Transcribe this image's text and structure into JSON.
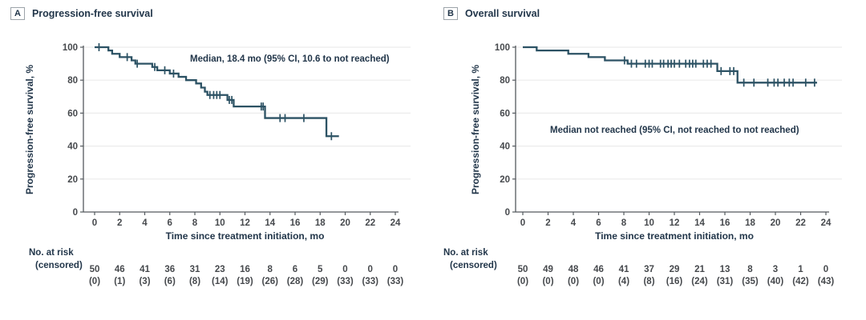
{
  "figure": {
    "background": "#ffffff",
    "colors": {
      "curve": "#2C5264",
      "axis": "#54595E",
      "grid": "#ECECEC",
      "heading_text": "#22364A",
      "tick_text": "#46494D"
    },
    "panels": [
      {
        "letter": "A",
        "title": "Progression-free survival",
        "annotation": "Median, 18.4 mo (95% CI, 10.6 to not reached)",
        "ylabel": "Progression-free survival, %",
        "xlabel": "Time since treatment initiation, mo",
        "risk_header": "No. at risk",
        "risk_subheader": "(censored)"
      },
      {
        "letter": "B",
        "title": "Overall survival",
        "annotation": "Median not reached (95% CI, not reached to not reached)",
        "ylabel": "Progression-free survival, %",
        "xlabel": "Time since treatment initiation, mo",
        "risk_header": "No. at risk",
        "risk_subheader": "(censored)"
      }
    ]
  },
  "chart_data": [
    {
      "type": "line",
      "variant": "kaplan_meier_step",
      "title": "Progression-free survival",
      "annotation": "Median, 18.4 mo (95% CI, 10.6 to not reached)",
      "median_months": "18.4",
      "xlabel": "Time since treatment initiation, mo",
      "ylabel": "Progression-free survival, %",
      "xlim": [
        0,
        24
      ],
      "ylim": [
        0,
        100
      ],
      "xticks": [
        0,
        2,
        4,
        6,
        8,
        10,
        12,
        14,
        16,
        18,
        20,
        22,
        24
      ],
      "yticks": [
        0,
        20,
        40,
        60,
        80,
        100
      ],
      "grid": "horizontal-light",
      "legend": "none",
      "steps": [
        [
          0,
          100
        ],
        [
          1.1,
          98
        ],
        [
          1.4,
          96
        ],
        [
          2.0,
          94
        ],
        [
          2.95,
          92
        ],
        [
          3.25,
          90
        ],
        [
          4.6,
          88
        ],
        [
          5.0,
          86
        ],
        [
          6.0,
          84
        ],
        [
          6.7,
          82
        ],
        [
          7.3,
          80
        ],
        [
          8.1,
          78
        ],
        [
          8.5,
          75.5
        ],
        [
          8.8,
          73
        ],
        [
          9.0,
          71
        ],
        [
          10.6,
          68
        ],
        [
          11.1,
          64
        ],
        [
          13.6,
          57
        ],
        [
          18.5,
          46
        ]
      ],
      "curve_end": 19.5,
      "censors": [
        [
          0.35,
          100
        ],
        [
          2.6,
          94
        ],
        [
          3.4,
          90
        ],
        [
          4.8,
          88
        ],
        [
          5.6,
          86
        ],
        [
          6.3,
          84
        ],
        [
          9.2,
          71
        ],
        [
          9.5,
          71
        ],
        [
          9.75,
          71
        ],
        [
          10.0,
          71
        ],
        [
          10.75,
          68
        ],
        [
          10.95,
          68
        ],
        [
          13.3,
          64
        ],
        [
          13.45,
          64
        ],
        [
          14.8,
          57
        ],
        [
          15.2,
          57
        ],
        [
          16.7,
          57
        ],
        [
          18.9,
          46
        ]
      ],
      "at_risk": {
        "times": [
          0,
          2,
          4,
          6,
          8,
          10,
          12,
          14,
          16,
          18,
          20,
          22,
          24
        ],
        "n": [
          50,
          46,
          41,
          36,
          31,
          23,
          16,
          8,
          6,
          5,
          0,
          0,
          0
        ],
        "censored": [
          "(0)",
          "(1)",
          "(3)",
          "(6)",
          "(8)",
          "(14)",
          "(19)",
          "(26)",
          "(28)",
          "(29)",
          "(33)",
          "(33)",
          "(33)"
        ]
      }
    },
    {
      "type": "line",
      "variant": "kaplan_meier_step",
      "title": "Overall survival",
      "annotation": "Median not reached (95% CI, not reached to not reached)",
      "median_months": "not reached",
      "xlabel": "Time since treatment initiation, mo",
      "ylabel": "Progression-free survival, %",
      "xlim": [
        0,
        24
      ],
      "ylim": [
        0,
        100
      ],
      "xticks": [
        0,
        2,
        4,
        6,
        8,
        10,
        12,
        14,
        16,
        18,
        20,
        22,
        24
      ],
      "yticks": [
        0,
        20,
        40,
        60,
        80,
        100
      ],
      "grid": "horizontal-light",
      "legend": "none",
      "steps": [
        [
          0,
          100
        ],
        [
          1.1,
          98
        ],
        [
          3.6,
          96
        ],
        [
          5.2,
          94
        ],
        [
          6.5,
          92
        ],
        [
          8.3,
          90
        ],
        [
          15.4,
          85.5
        ],
        [
          17.0,
          78.5
        ]
      ],
      "curve_end": 23.3,
      "censors": [
        [
          8.05,
          92
        ],
        [
          8.6,
          90
        ],
        [
          9.0,
          90
        ],
        [
          9.7,
          90
        ],
        [
          10.0,
          90
        ],
        [
          10.25,
          90
        ],
        [
          10.9,
          90
        ],
        [
          11.15,
          90
        ],
        [
          11.5,
          90
        ],
        [
          11.75,
          90
        ],
        [
          12.0,
          90
        ],
        [
          12.4,
          90
        ],
        [
          12.9,
          90
        ],
        [
          13.2,
          90
        ],
        [
          13.45,
          90
        ],
        [
          13.7,
          90
        ],
        [
          14.3,
          90
        ],
        [
          14.6,
          90
        ],
        [
          14.9,
          90
        ],
        [
          15.7,
          85.5
        ],
        [
          16.4,
          85.5
        ],
        [
          16.7,
          85.5
        ],
        [
          17.5,
          78.5
        ],
        [
          18.3,
          78.5
        ],
        [
          19.4,
          78.5
        ],
        [
          19.9,
          78.5
        ],
        [
          20.2,
          78.5
        ],
        [
          20.7,
          78.5
        ],
        [
          21.1,
          78.5
        ],
        [
          21.4,
          78.5
        ],
        [
          22.4,
          78.5
        ],
        [
          23.1,
          78.5
        ]
      ],
      "at_risk": {
        "times": [
          0,
          2,
          4,
          6,
          8,
          10,
          12,
          14,
          16,
          18,
          20,
          22,
          24
        ],
        "n": [
          50,
          49,
          48,
          46,
          41,
          37,
          29,
          21,
          13,
          8,
          3,
          1,
          0
        ],
        "censored": [
          "(0)",
          "(0)",
          "(0)",
          "(0)",
          "(4)",
          "(8)",
          "(16)",
          "(24)",
          "(31)",
          "(35)",
          "(40)",
          "(42)",
          "(43)"
        ]
      }
    }
  ]
}
